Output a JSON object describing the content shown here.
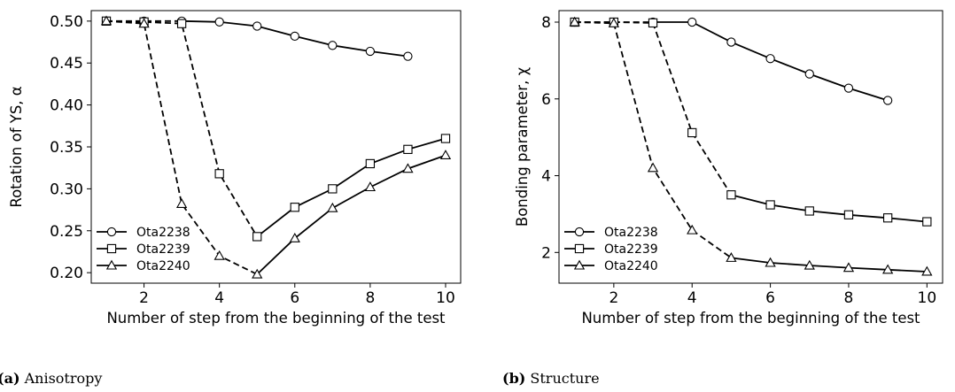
{
  "chart_data": [
    {
      "type": "line",
      "caption_label": "(a)",
      "caption_text": " Anisotropy",
      "xlabel": "Number of step from the beginning of the test",
      "ylabel": "Rotation of YS, α",
      "xlim": [
        0.6,
        10.4
      ],
      "ylim": [
        0.1875,
        0.5125
      ],
      "xticks": [
        2,
        4,
        6,
        8,
        10
      ],
      "xtick_labels": [
        "2",
        "4",
        "6",
        "8",
        "10"
      ],
      "yticks": [
        0.2,
        0.25,
        0.3,
        0.35,
        0.4,
        0.45,
        0.5
      ],
      "ytick_labels": [
        "0.20",
        "0.25",
        "0.30",
        "0.35",
        "0.40",
        "0.45",
        "0.50"
      ],
      "grid": false,
      "legend_position": "lower-left",
      "series": [
        {
          "name": "Ota2238",
          "marker": "circle",
          "x": [
            1,
            2,
            3,
            4,
            5,
            6,
            7,
            8,
            9
          ],
          "y": [
            0.5,
            0.5,
            0.5,
            0.499,
            0.494,
            0.482,
            0.471,
            0.464,
            0.458
          ],
          "dash_until": 3
        },
        {
          "name": "Ota2239",
          "marker": "square",
          "x": [
            1,
            2,
            3,
            4,
            5,
            6,
            7,
            8,
            9,
            10
          ],
          "y": [
            0.5,
            0.499,
            0.497,
            0.318,
            0.243,
            0.278,
            0.3,
            0.33,
            0.347,
            0.36
          ],
          "dash_until": 5
        },
        {
          "name": "Ota2240",
          "marker": "triangle",
          "x": [
            1,
            2,
            3,
            4,
            5,
            6,
            7,
            8,
            9,
            10
          ],
          "y": [
            0.5,
            0.497,
            0.282,
            0.22,
            0.198,
            0.241,
            0.277,
            0.302,
            0.324,
            0.34
          ],
          "dash_until": 5
        }
      ]
    },
    {
      "type": "line",
      "caption_label": "(b)",
      "caption_text": " Structure",
      "xlabel": "Number of step from the beginning of the test",
      "ylabel": "Bonding parameter, χ",
      "xlim": [
        0.6,
        10.4
      ],
      "ylim": [
        1.2,
        8.3
      ],
      "xticks": [
        2,
        4,
        6,
        8,
        10
      ],
      "xtick_labels": [
        "2",
        "4",
        "6",
        "8",
        "10"
      ],
      "yticks": [
        2,
        4,
        6,
        8
      ],
      "ytick_labels": [
        "2",
        "4",
        "6",
        "8"
      ],
      "grid": false,
      "legend_position": "lower-left",
      "series": [
        {
          "name": "Ota2238",
          "marker": "circle",
          "x": [
            1,
            2,
            3,
            4,
            5,
            6,
            7,
            8,
            9
          ],
          "y": [
            8.0,
            8.0,
            8.0,
            8.0,
            7.48,
            7.05,
            6.65,
            6.28,
            5.96
          ],
          "dash_until": 3
        },
        {
          "name": "Ota2239",
          "marker": "square",
          "x": [
            1,
            2,
            3,
            4,
            5,
            6,
            7,
            8,
            9,
            10
          ],
          "y": [
            8.0,
            8.0,
            7.98,
            5.12,
            3.5,
            3.24,
            3.08,
            2.98,
            2.9,
            2.8
          ],
          "dash_until": 5
        },
        {
          "name": "Ota2240",
          "marker": "triangle",
          "x": [
            1,
            2,
            3,
            4,
            5,
            6,
            7,
            8,
            9,
            10
          ],
          "y": [
            8.0,
            7.97,
            4.2,
            2.58,
            1.86,
            1.73,
            1.66,
            1.6,
            1.55,
            1.5
          ],
          "dash_until": 5
        }
      ]
    }
  ]
}
